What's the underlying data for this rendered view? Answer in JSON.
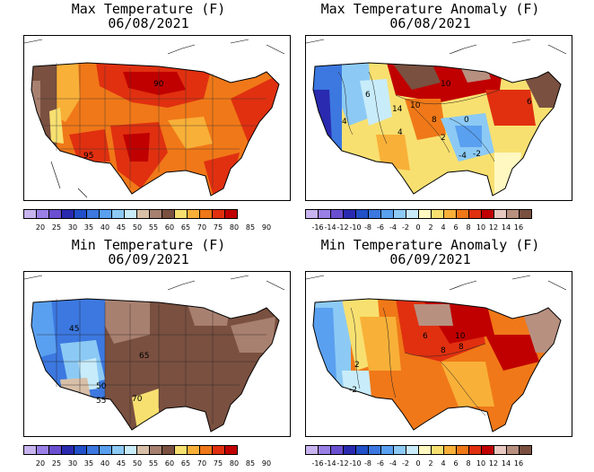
{
  "panels": [
    {
      "title": "Max Temperature (F)",
      "date": "06/08/2021",
      "variable": "temperature",
      "map_labels": [
        "90",
        "95"
      ],
      "legend_ticks": [
        "20",
        "25",
        "30",
        "35",
        "40",
        "45",
        "50",
        "55",
        "60",
        "65",
        "70",
        "75",
        "80",
        "85",
        "90"
      ],
      "legend_colors": [
        "#c8b4f0",
        "#9a80e6",
        "#6a4fd0",
        "#2a2ab0",
        "#2250c8",
        "#3c78e0",
        "#5aa0f0",
        "#8ccaf5",
        "#c8ecfa",
        "#d8c0a8",
        "#a88070",
        "#7a5040",
        "#f8e070",
        "#f8b038",
        "#f07818",
        "#e03010",
        "#c00000"
      ]
    },
    {
      "title": "Max Temperature Anomaly (F)",
      "date": "06/08/2021",
      "variable": "anomaly",
      "map_labels": [
        "10",
        "6",
        "14",
        "10",
        "8",
        "4",
        "0",
        "-4",
        "-2",
        "2",
        "6",
        "4"
      ],
      "legend_ticks": [
        "-16",
        "-14",
        "-12",
        "-10",
        "-8",
        "-6",
        "-4",
        "-2",
        "0",
        "2",
        "4",
        "6",
        "8",
        "10",
        "12",
        "14",
        "16"
      ],
      "legend_colors": [
        "#c8b4f0",
        "#9a80e6",
        "#6a4fd0",
        "#2a2ab0",
        "#2250c8",
        "#3c78e0",
        "#5aa0f0",
        "#8ccaf5",
        "#c8ecfa",
        "#fff8c0",
        "#f8e070",
        "#f8b038",
        "#f07818",
        "#e03010",
        "#c00000",
        "#e8c8c0",
        "#b89080",
        "#7a5040"
      ]
    },
    {
      "title": "Min Temperature (F)",
      "date": "06/09/2021",
      "variable": "temperature",
      "map_labels": [
        "45",
        "50",
        "55",
        "65",
        "70"
      ],
      "legend_ticks": [
        "20",
        "25",
        "30",
        "35",
        "40",
        "45",
        "50",
        "55",
        "60",
        "65",
        "70",
        "75",
        "80",
        "85",
        "90"
      ],
      "legend_colors": [
        "#c8b4f0",
        "#9a80e6",
        "#6a4fd0",
        "#2a2ab0",
        "#2250c8",
        "#3c78e0",
        "#5aa0f0",
        "#8ccaf5",
        "#c8ecfa",
        "#d8c0a8",
        "#a88070",
        "#7a5040",
        "#f8e070",
        "#f8b038",
        "#f07818",
        "#e03010",
        "#c00000"
      ]
    },
    {
      "title": "Min Temperature Anomaly (F)",
      "date": "06/09/2021",
      "variable": "anomaly",
      "map_labels": [
        "10",
        "8",
        "6",
        "8",
        "2",
        "-2"
      ],
      "legend_ticks": [
        "-16",
        "-14",
        "-12",
        "-10",
        "-8",
        "-6",
        "-4",
        "-2",
        "0",
        "2",
        "4",
        "6",
        "8",
        "10",
        "12",
        "14",
        "16"
      ],
      "legend_colors": [
        "#c8b4f0",
        "#9a80e6",
        "#6a4fd0",
        "#2a2ab0",
        "#2250c8",
        "#3c78e0",
        "#5aa0f0",
        "#8ccaf5",
        "#c8ecfa",
        "#fff8c0",
        "#f8e070",
        "#f8b038",
        "#f07818",
        "#e03010",
        "#c00000",
        "#e8c8c0",
        "#b89080",
        "#7a5040"
      ]
    }
  ]
}
